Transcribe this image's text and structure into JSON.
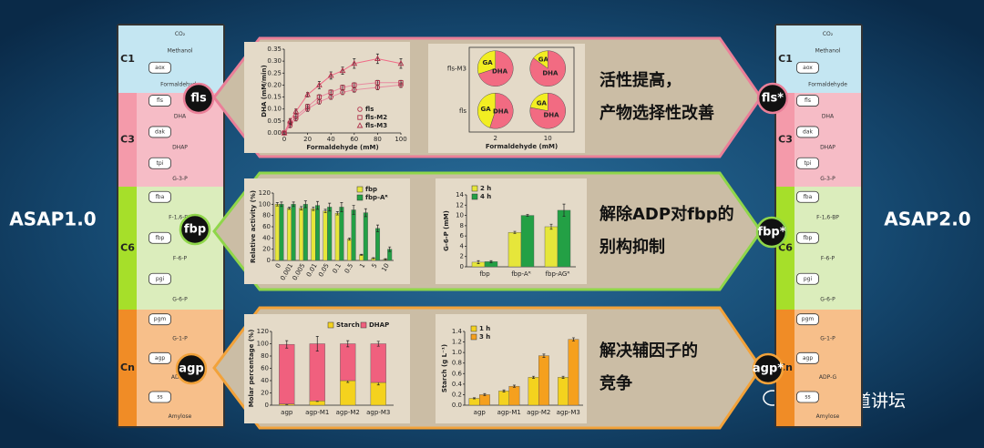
{
  "labels": {
    "left": "ASAP1.0",
    "right": "ASAP2.0"
  },
  "pathway": {
    "sections": [
      {
        "label": "C1",
        "color": "#c4e6f2",
        "strip": "#c4e6f2",
        "items": [
          {
            "text": "CO₂",
            "boxed": false
          },
          {
            "text": "Methanol",
            "boxed": false
          },
          {
            "text": "aox",
            "boxed": true
          },
          {
            "text": "Formaldehyde",
            "boxed": false
          }
        ]
      },
      {
        "label": "C3",
        "color": "#f6bcc6",
        "strip": "#f49aaa",
        "items": [
          {
            "text": "fls",
            "boxed": true
          },
          {
            "text": "DHA",
            "boxed": false
          },
          {
            "text": "dak",
            "boxed": true
          },
          {
            "text": "DHAP",
            "boxed": false
          },
          {
            "text": "tpi",
            "boxed": true
          },
          {
            "text": "G-3-P",
            "boxed": false
          }
        ]
      },
      {
        "label": "C6",
        "color": "#dbedbc",
        "strip": "#a6df2a",
        "items": [
          {
            "text": "fba",
            "boxed": true
          },
          {
            "text": "F-1,6-BP",
            "boxed": false
          },
          {
            "text": "fbp",
            "boxed": true
          },
          {
            "text": "F-6-P",
            "boxed": false
          },
          {
            "text": "pgi",
            "boxed": true
          },
          {
            "text": "G-6-P",
            "boxed": false
          }
        ]
      },
      {
        "label": "Cn",
        "color": "#f7bf8a",
        "strip": "#f08c26",
        "items": [
          {
            "text": "pgm",
            "boxed": true
          },
          {
            "text": "G-1-P",
            "boxed": false
          },
          {
            "text": "agp",
            "boxed": true
          },
          {
            "text": "ADP-G",
            "boxed": false
          },
          {
            "text": "ss",
            "boxed": true
          },
          {
            "text": "Amylose",
            "boxed": false
          }
        ]
      }
    ]
  },
  "panels": [
    {
      "badge": "fls",
      "badge_star": "fls*",
      "border_color": "#ea7f98",
      "text": [
        "活性提高，",
        "产物选择性改善"
      ],
      "charts": [
        {
          "type": "line",
          "xlabel": "Formaldehyde (mM)",
          "ylabel": "DHA (mM/min)",
          "x": [
            0,
            5,
            10,
            20,
            30,
            40,
            50,
            60,
            80,
            100
          ],
          "xlim": [
            0,
            100
          ],
          "xticks": [
            0,
            20,
            40,
            60,
            80,
            100
          ],
          "ylim": [
            0,
            0.35
          ],
          "yticks": [
            {
              "value": 0,
              "label": "0.00"
            },
            {
              "value": 0.05,
              "label": "0.05"
            },
            {
              "value": 0.1,
              "label": "0.10"
            },
            {
              "value": 0.15,
              "label": "0.15"
            },
            {
              "value": 0.2,
              "label": "0.20"
            },
            {
              "value": 0.25,
              "label": "0.25"
            },
            {
              "value": 0.3,
              "label": "0.30"
            },
            {
              "value": 0.35,
              "label": "0.35"
            }
          ],
          "series": [
            {
              "name": "fls",
              "color": "#b0304a",
              "marker": "circle",
              "values": [
                0,
                0.03,
                0.06,
                0.1,
                0.13,
                0.15,
                0.17,
                0.18,
                0.19,
                0.2
              ],
              "errors": [
                0.005,
                0.005,
                0.01,
                0.01,
                0.01,
                0.01,
                0.01,
                0.01,
                0.01,
                0.01
              ]
            },
            {
              "name": "fls-M2",
              "color": "#b0304a",
              "marker": "square",
              "values": [
                0,
                0.04,
                0.07,
                0.11,
                0.15,
                0.17,
                0.19,
                0.2,
                0.21,
                0.21
              ],
              "errors": [
                0.005,
                0.005,
                0.01,
                0.01,
                0.01,
                0.01,
                0.01,
                0.01,
                0.01,
                0.01
              ]
            },
            {
              "name": "fls-M3",
              "color": "#b0304a",
              "marker": "triangle",
              "values": [
                0,
                0.05,
                0.09,
                0.16,
                0.2,
                0.24,
                0.26,
                0.29,
                0.31,
                0.29
              ],
              "errors": [
                0.005,
                0.01,
                0.01,
                0.01,
                0.015,
                0.015,
                0.015,
                0.02,
                0.02,
                0.02
              ]
            }
          ]
        },
        {
          "type": "pie",
          "xlabel": "Formaldehyde (mM)",
          "categories": [
            "GA",
            "DHA"
          ],
          "colors": [
            "#f2ee22",
            "#f26b82"
          ],
          "rows": [
            "fls-M3",
            "fls"
          ],
          "columns": [
            "2",
            "10"
          ],
          "values": [
            [
              [
                30,
                70
              ],
              [
                15,
                85
              ]
            ],
            [
              [
                45,
                55
              ],
              [
                22,
                78
              ]
            ]
          ]
        }
      ]
    },
    {
      "badge": "fbp",
      "badge_star": "fbp*",
      "border_color": "#8fd64a",
      "text": [
        "解除ADP对fbp的",
        "别构抑制"
      ],
      "charts": [
        {
          "type": "bar",
          "ylabel": "Relative activity (%)",
          "categories": [
            "0",
            "0.001",
            "0.005",
            "0.01",
            "0.05",
            "0.1",
            "0.5",
            "1",
            "5",
            "10"
          ],
          "ylim": [
            0,
            120
          ],
          "yticks": [
            0,
            20,
            40,
            60,
            80,
            100,
            120
          ],
          "series": [
            {
              "name": "fbp",
              "color": "#e6e63a",
              "values": [
                100,
                93,
                93,
                92,
                88,
                84,
                38,
                10,
                4,
                2
              ],
              "errors": [
                3,
                2,
                3,
                3,
                3,
                3,
                2,
                1,
                1,
                1
              ]
            },
            {
              "name": "fbp-Aᴿ",
              "color": "#23a045",
              "values": [
                100,
                100,
                100,
                98,
                95,
                95,
                90,
                85,
                57,
                20
              ],
              "errors": [
                4,
                4,
                6,
                7,
                7,
                8,
                8,
                7,
                6,
                4
              ]
            }
          ]
        },
        {
          "type": "bar",
          "ylabel": "G-6-P (mM)",
          "categories": [
            "fbp",
            "fbp-Aᴿ",
            "fbp-AGᴿ"
          ],
          "ylim": [
            0,
            14
          ],
          "yticks": [
            0,
            2,
            4,
            6,
            8,
            10,
            12,
            14
          ],
          "series": [
            {
              "name": "2 h",
              "color": "#e6e63a",
              "values": [
                0.9,
                6.7,
                7.8
              ],
              "errors": [
                0.3,
                0.2,
                0.5
              ]
            },
            {
              "name": "4 h",
              "color": "#23a045",
              "values": [
                1.0,
                10.0,
                11.0
              ],
              "errors": [
                0.2,
                0.2,
                1.2
              ]
            }
          ]
        }
      ]
    },
    {
      "badge": "agp",
      "badge_star": "agp*",
      "border_color": "#f2a23a",
      "text": [
        "解决辅因子的",
        "竞争"
      ],
      "charts": [
        {
          "type": "bar",
          "stacked": true,
          "ylabel": "Molar percentage (%)",
          "categories": [
            "agp",
            "agp-M1",
            "agp-M2",
            "agp-M3"
          ],
          "ylim": [
            0,
            120
          ],
          "yticks": [
            0,
            20,
            40,
            60,
            80,
            100,
            120
          ],
          "series": [
            {
              "name": "Starch",
              "color": "#f4d21e",
              "values": [
                2,
                7,
                40,
                37
              ],
              "errors": [
                1,
                1,
                3,
                4
              ]
            },
            {
              "name": "DHAP",
              "color": "#f0607e",
              "values": [
                97,
                93,
                60,
                63
              ],
              "errors": [
                6,
                12,
                5,
                4
              ]
            }
          ]
        },
        {
          "type": "bar",
          "ylabel": "Starch (g L⁻¹)",
          "categories": [
            "agp",
            "agp-M1",
            "agp-M2",
            "agp-M3"
          ],
          "ylim": [
            0,
            1.4
          ],
          "yticks": [
            {
              "value": 0,
              "label": "0.0"
            },
            {
              "value": 0.2,
              "label": "0.2"
            },
            {
              "value": 0.4,
              "label": "0.4"
            },
            {
              "value": 0.6,
              "label": "0.6"
            },
            {
              "value": 0.8,
              "label": "0.8"
            },
            {
              "value": 1.0,
              "label": "1.0"
            },
            {
              "value": 1.2,
              "label": "1.2"
            },
            {
              "value": 1.4,
              "label": "1.4"
            }
          ],
          "series": [
            {
              "name": "1 h",
              "color": "#f4d21e",
              "values": [
                0.13,
                0.27,
                0.53,
                0.53
              ],
              "errors": [
                0.01,
                0.02,
                0.02,
                0.02
              ]
            },
            {
              "name": "3 h",
              "color": "#f5a01e",
              "values": [
                0.2,
                0.36,
                0.94,
                1.25
              ],
              "errors": [
                0.02,
                0.02,
                0.03,
                0.03
              ]
            }
          ]
        }
      ]
    }
  ],
  "watermark": "格致论道讲坛"
}
